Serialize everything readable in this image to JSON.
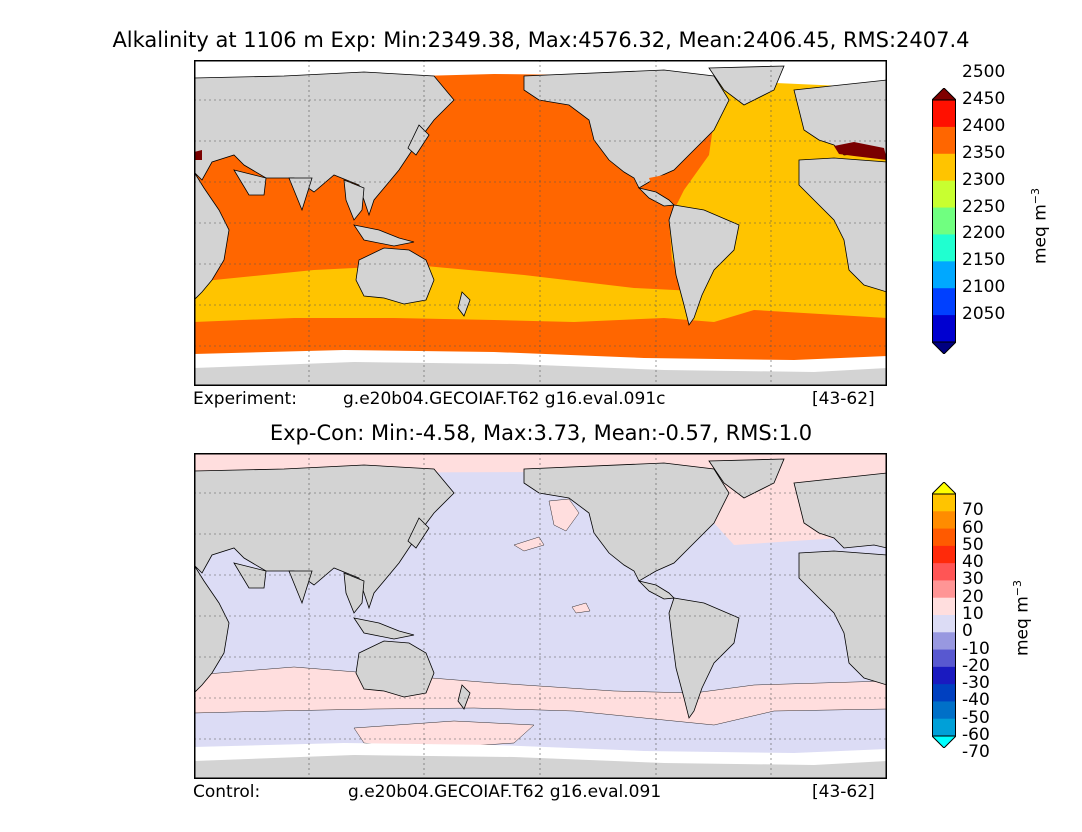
{
  "top_title": "Alkalinity at 1106 m Exp: Min:2349.38, Max:4576.32, Mean:2406.45, RMS:2407.4",
  "top_footer": {
    "label": "Experiment:",
    "case": "g.e20b04.GECOIAF.T62 g16.eval.091c",
    "range": "[43-62]"
  },
  "bottom_title": "Exp-Con: Min:-4.58, Max:3.73, Mean:-0.57, RMS:1.0",
  "bottom_footer": {
    "label": "Control:",
    "case": "g.e20b04.GECOIAF.T62 g16.eval.091",
    "range": "[43-62]"
  },
  "units_top": "meq m",
  "units_bottom": "meq m",
  "units_exp": "−3",
  "colors": {
    "land": "#d3d3d3",
    "top_pacific": "#ff6600",
    "top_atlantic": "#ffc400",
    "top_med": "#7a0000",
    "bottom_neg10": "#dcdcf5",
    "bottom_pos10": "#ffdede"
  },
  "chart_data": [
    {
      "type": "heatmap",
      "title": "Alkalinity at 1106 m Exp: Min:2349.38, Max:4576.32, Mean:2406.45, RMS:2407.4",
      "colorbar": {
        "ticks": [
          "2050",
          "2100",
          "2150",
          "2200",
          "2250",
          "2300",
          "2350",
          "2400",
          "2450",
          "2500"
        ],
        "levels": [
          2050,
          2100,
          2150,
          2200,
          2250,
          2300,
          2350,
          2400,
          2450,
          2500
        ],
        "colors": [
          "#000080",
          "#0000d0",
          "#0040ff",
          "#00a8ff",
          "#20ffd0",
          "#70ff80",
          "#c8ff30",
          "#ffc400",
          "#ff6600",
          "#ff1000",
          "#800000"
        ],
        "label": "meq m−3"
      }
    },
    {
      "type": "heatmap",
      "title": "Exp-Con: Min:-4.58, Max:3.73, Mean:-0.57, RMS:1.0",
      "colorbar": {
        "ticks": [
          "70",
          "60",
          "50",
          "40",
          "30",
          "20",
          "10",
          "0",
          "-10",
          "-20",
          "-30",
          "-40",
          "-50",
          "-60",
          "-70"
        ],
        "levels": [
          70,
          60,
          50,
          40,
          30,
          20,
          10,
          0,
          -10,
          -20,
          -30,
          -40,
          -50,
          -60,
          -70
        ],
        "colors": [
          "#ffff00",
          "#ffc400",
          "#ff8c00",
          "#ff5a00",
          "#ff2a0a",
          "#ff5555",
          "#ff9595",
          "#ffdede",
          "#dcdcf5",
          "#9898e0",
          "#5858d0",
          "#1a1ac0",
          "#0040c0",
          "#0070c8",
          "#00a0d8",
          "#00ffff"
        ],
        "label": "meq m−3"
      }
    }
  ]
}
